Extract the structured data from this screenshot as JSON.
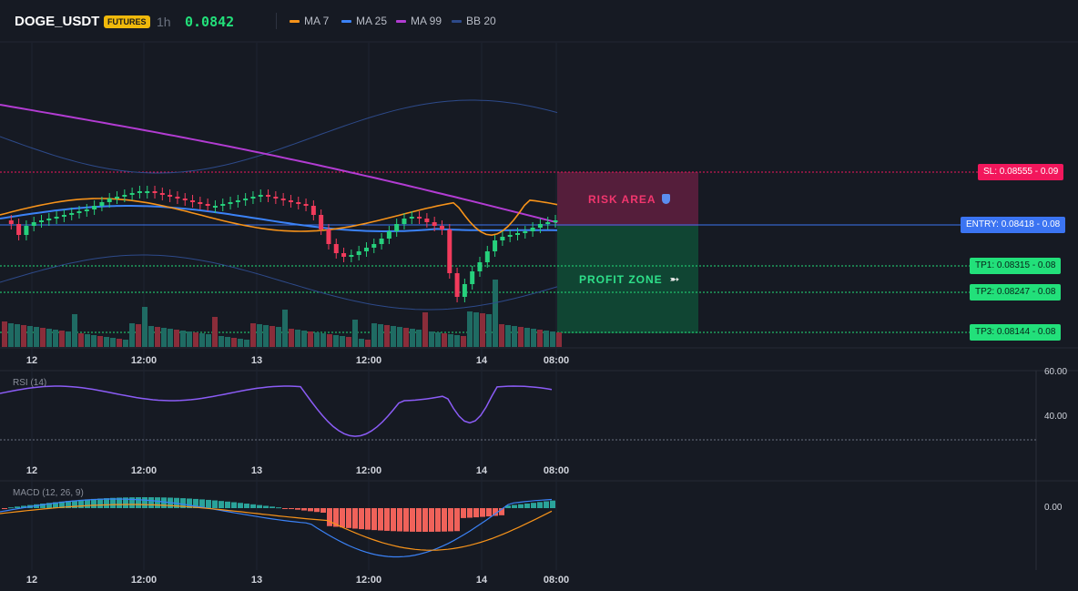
{
  "header": {
    "symbol": "DOGE_USDT",
    "badge": "FUTURES",
    "timeframe": "1h",
    "price": "0.0842"
  },
  "legend": [
    {
      "label": "MA 7",
      "color": "#f7931a"
    },
    {
      "label": "MA 25",
      "color": "#3b82f6"
    },
    {
      "label": "MA 99",
      "color": "#b23cd2"
    },
    {
      "label": "BB 20",
      "color": "#2d4a8a"
    }
  ],
  "overlays": {
    "risk_label": "RISK AREA",
    "profit_label": "PROFIT ZONE",
    "risk_icon": "shield-icon",
    "profit_icon": "rocket-icon"
  },
  "levels": {
    "sl": "SL: 0.08555 - 0.09",
    "entry": "ENTRY: 0.08418 - 0.08",
    "tp1": "TP1: 0.08315 - 0.08",
    "tp2": "TP2: 0.08247 - 0.08",
    "tp3": "TP3: 0.08144 - 0.08"
  },
  "x_axis": [
    "12",
    "12:00",
    "13",
    "12:00",
    "14",
    "08:00"
  ],
  "rsi": {
    "title": "RSI (14)",
    "ticks": [
      "60.00",
      "40.00"
    ]
  },
  "macd": {
    "title": "MACD (12, 26, 9)",
    "ticks": [
      "0.00"
    ]
  },
  "colors": {
    "up": "#26d07c",
    "down": "#f23b5c",
    "volume_up": "#1f6b63",
    "volume_down": "#8a2d3a",
    "entry": "#3b74f2",
    "sl": "#f2175c",
    "tp": "#22e07a"
  }
}
